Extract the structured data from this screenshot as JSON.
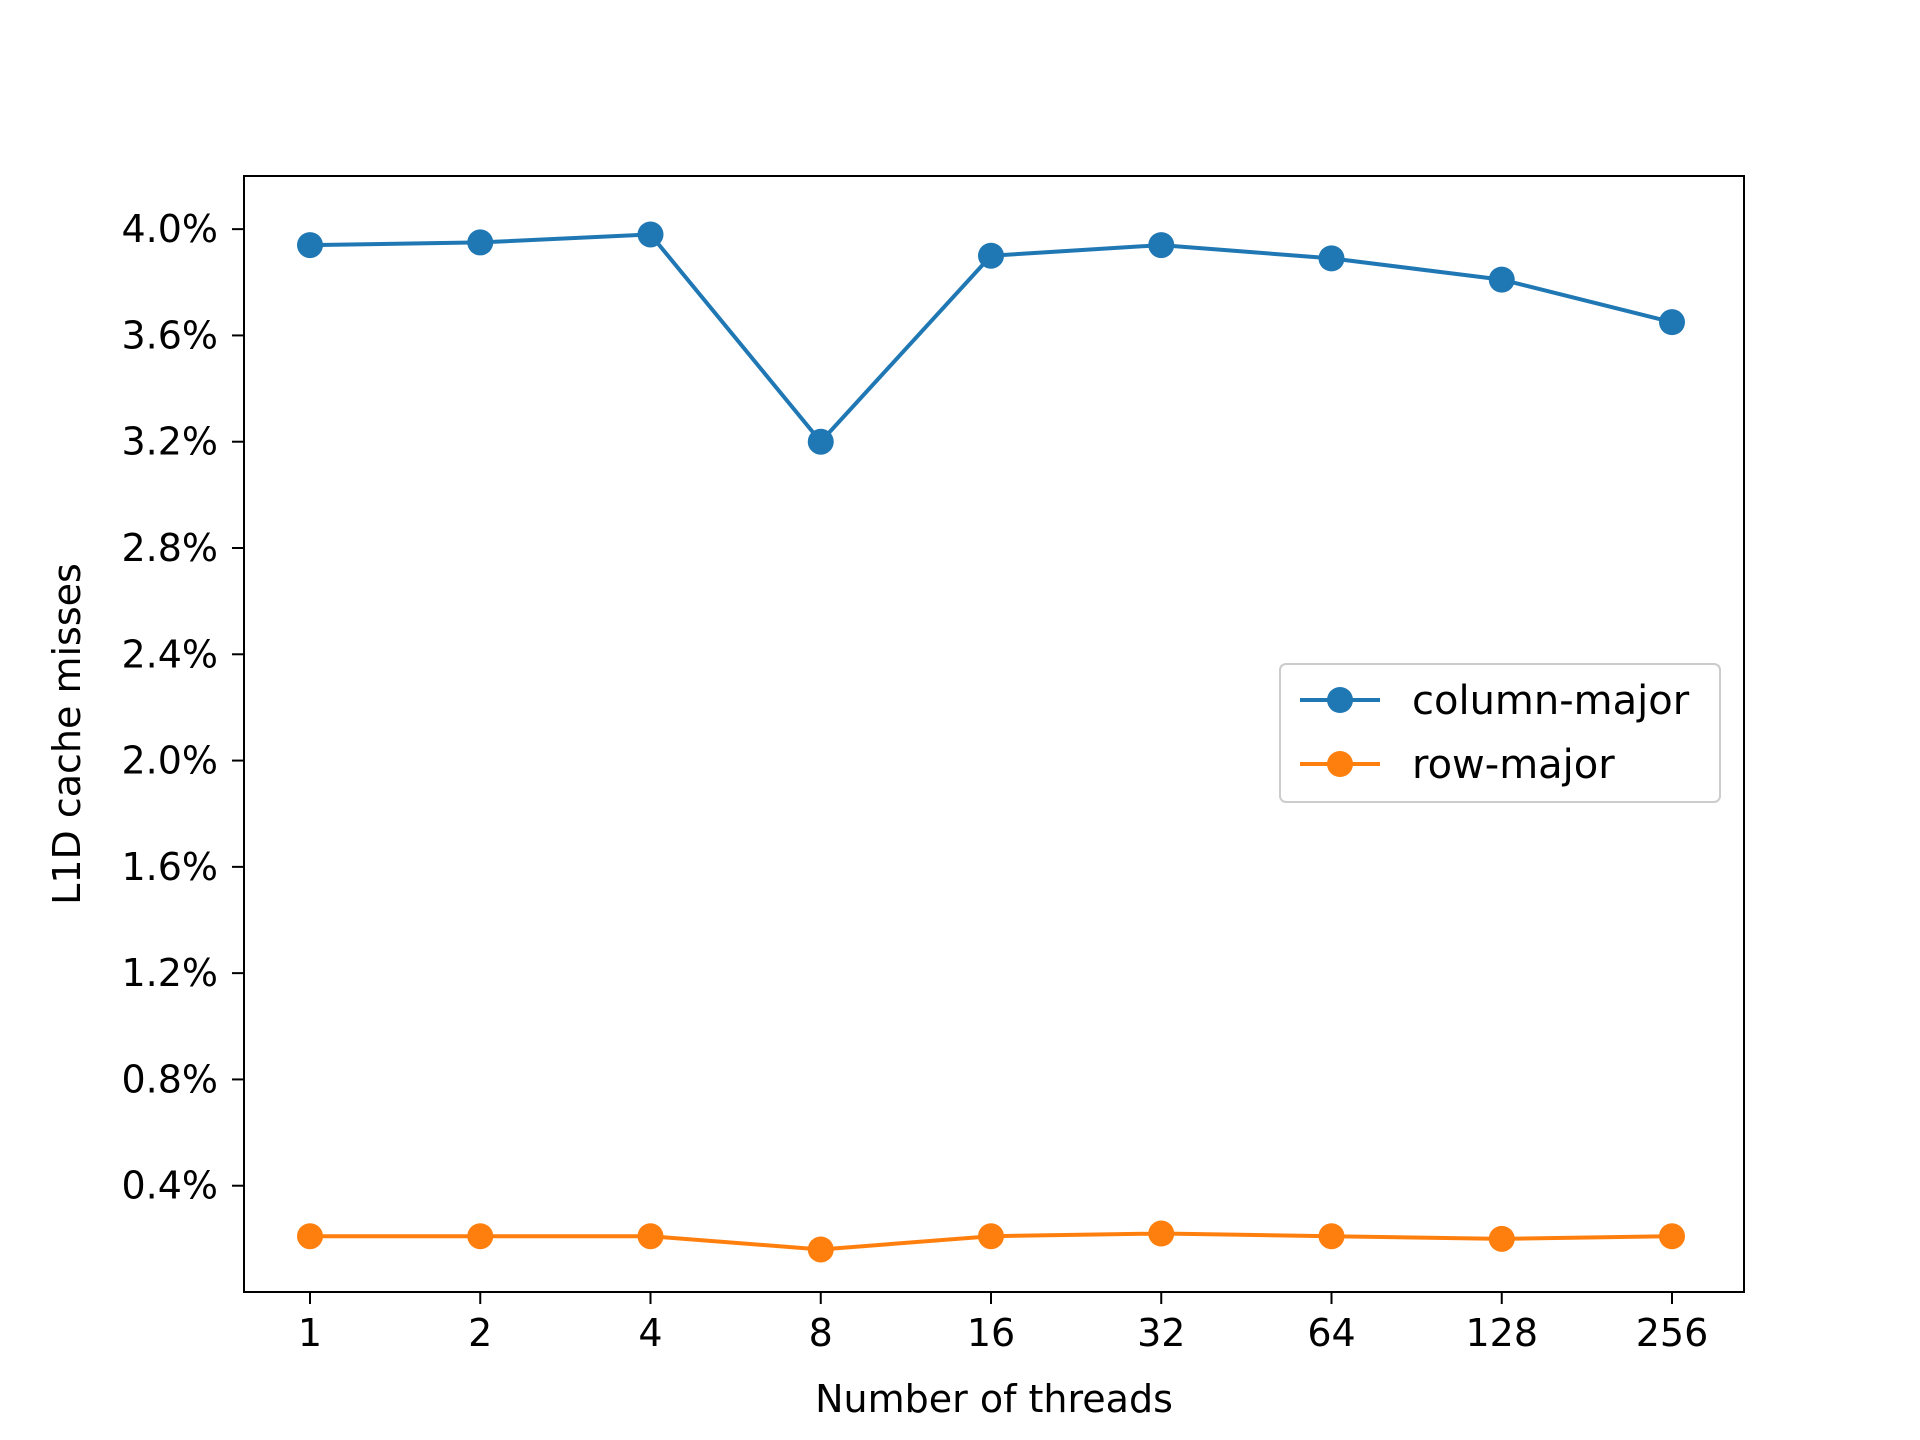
{
  "chart_data": {
    "type": "line",
    "title": "",
    "xlabel": "Number of threads",
    "ylabel": "L1D cache misses",
    "x": [
      "1",
      "2",
      "4",
      "8",
      "16",
      "32",
      "64",
      "128",
      "256"
    ],
    "ylim": [
      0.0,
      4.2
    ],
    "yticks": [
      0.4,
      0.8,
      1.2,
      1.6,
      2.0,
      2.4,
      2.8,
      3.2,
      3.6,
      4.0
    ],
    "ytick_labels": [
      "0.4%",
      "0.8%",
      "1.2%",
      "1.6%",
      "2.0%",
      "2.4%",
      "2.8%",
      "3.2%",
      "3.6%",
      "4.0%"
    ],
    "grid": false,
    "legend_position": "center-right",
    "series": [
      {
        "name": "column-major",
        "color": "#1f77b4",
        "values": [
          3.94,
          3.95,
          3.98,
          3.2,
          3.9,
          3.94,
          3.89,
          3.81,
          3.65
        ]
      },
      {
        "name": "row-major",
        "color": "#ff7f0e",
        "values": [
          0.21,
          0.21,
          0.21,
          0.16,
          0.21,
          0.22,
          0.21,
          0.2,
          0.21
        ]
      }
    ]
  }
}
